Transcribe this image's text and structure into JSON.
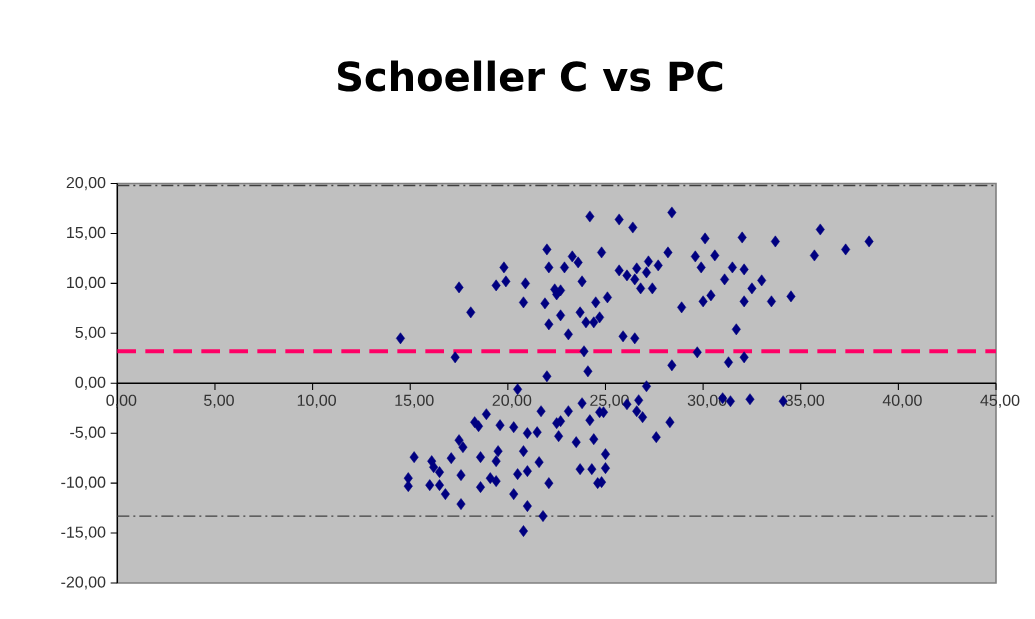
{
  "chart_data": {
    "type": "scatter",
    "title": "Schoeller C vs PC",
    "marker": "diamond",
    "xlim": [
      0,
      45
    ],
    "xticks": [
      {
        "value": 0,
        "label": "0,00"
      },
      {
        "value": 5,
        "label": "5,00"
      },
      {
        "value": 10,
        "label": "10,00"
      },
      {
        "value": 15,
        "label": "15,00"
      },
      {
        "value": 20,
        "label": "20,00"
      },
      {
        "value": 25,
        "label": "25,00"
      },
      {
        "value": 30,
        "label": "30,00"
      },
      {
        "value": 35,
        "label": "35,00"
      },
      {
        "value": 40,
        "label": "40,00"
      },
      {
        "value": 45,
        "label": "45,00"
      }
    ],
    "ylim": [
      -20,
      20
    ],
    "yticks": [
      {
        "value": -20,
        "label": "-20,00"
      },
      {
        "value": -15,
        "label": "-15,00"
      },
      {
        "value": -10,
        "label": "-10,00"
      },
      {
        "value": -5,
        "label": "-5,00"
      },
      {
        "value": 0,
        "label": "0,00"
      },
      {
        "value": 5,
        "label": "5,00"
      },
      {
        "value": 10,
        "label": "10,00"
      },
      {
        "value": 15,
        "label": "15,00"
      },
      {
        "value": 20,
        "label": "20,00"
      }
    ],
    "ref_lines": [
      {
        "axis": "y",
        "value": 19.8,
        "color": "#404040",
        "line_style": "dashdot"
      },
      {
        "axis": "y",
        "value": 3.2,
        "color": "#ff0066",
        "line_style": "dashed"
      },
      {
        "axis": "y",
        "value": -13.3,
        "color": "#404040",
        "line_style": "dashdot"
      }
    ],
    "series": [
      {
        "color": "#000080",
        "x": [
          24.2,
          22.0,
          24.8,
          23.3,
          23.6,
          22.1,
          22.9,
          19.8,
          19.4,
          19.9,
          20.9,
          17.5,
          23.8,
          22.4,
          22.7,
          22.5,
          20.8,
          21.9,
          24.5,
          25.1,
          18.1,
          22.7,
          23.7,
          24.0,
          24.4,
          24.7,
          22.1,
          23.1,
          14.5,
          17.3,
          23.9,
          24.1,
          22.0,
          20.5,
          28.4,
          25.7,
          26.4,
          36.0,
          32.0,
          30.1,
          33.7,
          38.5,
          37.3,
          35.7,
          28.2,
          29.6,
          30.6,
          29.9,
          31.5,
          32.1,
          25.7,
          26.1,
          26.6,
          27.2,
          27.7,
          27.1,
          26.5,
          26.8,
          27.4,
          31.1,
          33.0,
          32.5,
          30.4,
          30.0,
          32.1,
          33.5,
          34.5,
          28.9,
          25.9,
          26.5,
          31.7,
          29.7,
          28.4,
          31.3,
          32.1,
          27.1,
          26.1,
          26.7,
          26.6,
          26.9,
          24.9,
          28.3,
          27.6,
          31.0,
          31.4,
          32.4,
          34.1,
          25.0,
          25.0,
          24.8,
          21.7,
          23.1,
          23.8,
          24.7,
          24.2,
          22.7,
          22.5,
          22.6,
          18.3,
          18.5,
          18.9,
          19.6,
          20.3,
          21.0,
          21.5,
          23.5,
          24.4,
          17.5,
          17.7,
          20.8,
          19.5,
          18.6,
          19.4,
          15.2,
          16.1,
          17.1,
          21.6,
          16.2,
          16.5,
          17.6,
          20.5,
          21.0,
          23.7,
          24.3,
          14.9,
          14.9,
          16.0,
          16.5,
          16.8,
          17.6,
          18.6,
          19.1,
          19.4,
          22.1,
          24.6,
          20.3,
          21.0,
          21.8,
          20.8
        ],
        "values": [
          16.7,
          13.4,
          13.1,
          12.7,
          12.1,
          11.6,
          11.6,
          11.6,
          9.8,
          10.2,
          10.0,
          9.6,
          10.2,
          9.4,
          9.3,
          8.9,
          8.1,
          8.0,
          8.1,
          8.6,
          7.1,
          6.8,
          7.1,
          6.1,
          6.1,
          6.6,
          5.9,
          4.9,
          4.5,
          2.6,
          3.2,
          1.2,
          0.7,
          -0.6,
          17.1,
          16.4,
          15.6,
          15.4,
          14.6,
          14.5,
          14.2,
          14.2,
          13.4,
          12.8,
          13.1,
          12.7,
          12.8,
          11.6,
          11.6,
          11.4,
          11.3,
          10.8,
          11.5,
          12.2,
          11.8,
          11.1,
          10.4,
          9.5,
          9.5,
          10.4,
          10.3,
          9.5,
          8.8,
          8.2,
          8.2,
          8.2,
          8.7,
          7.6,
          4.7,
          4.5,
          5.4,
          3.1,
          1.8,
          2.1,
          2.6,
          -0.3,
          -2.1,
          -1.7,
          -2.8,
          -3.4,
          -2.9,
          -3.9,
          -5.4,
          -1.5,
          -1.8,
          -1.6,
          -1.8,
          -7.1,
          -8.5,
          -9.9,
          -2.8,
          -2.8,
          -2.0,
          -2.9,
          -3.7,
          -3.8,
          -4.0,
          -5.3,
          -3.9,
          -4.3,
          -3.1,
          -4.2,
          -4.4,
          -5.0,
          -4.9,
          -5.9,
          -5.6,
          -5.7,
          -6.4,
          -6.8,
          -6.8,
          -7.4,
          -7.8,
          -7.4,
          -7.8,
          -7.5,
          -7.9,
          -8.4,
          -8.9,
          -9.2,
          -9.1,
          -8.8,
          -8.6,
          -8.6,
          -9.5,
          -10.3,
          -10.2,
          -10.2,
          -11.1,
          -12.1,
          -10.4,
          -9.5,
          -9.8,
          -10.0,
          -10.0,
          -11.1,
          -12.3,
          -13.3,
          -14.8
        ]
      }
    ]
  }
}
